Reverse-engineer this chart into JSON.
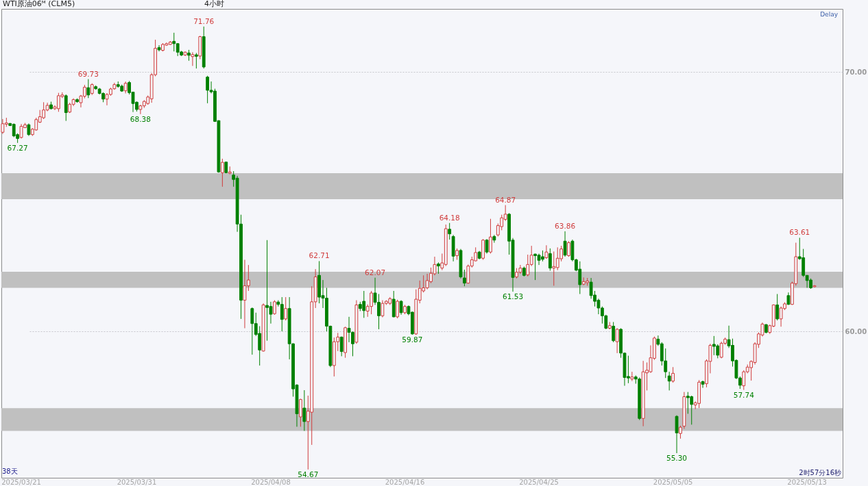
{
  "chart_data": {
    "type": "candlestick",
    "title": "WTI原油06ᴹ (CLM5)",
    "categories": [
      null,
      null,
      null,
      null,
      null,
      "2025/03/21",
      null,
      null,
      null,
      null,
      null,
      null,
      null,
      null,
      null,
      null,
      null,
      null,
      null,
      null,
      null,
      null,
      null,
      null,
      null,
      null,
      null,
      null,
      null,
      null,
      null,
      null,
      null,
      null,
      null,
      null,
      "2025/03/31",
      null,
      null,
      null,
      null,
      null,
      null,
      null,
      null,
      null,
      null,
      null,
      null,
      null,
      null,
      null,
      null,
      null,
      null,
      null,
      null,
      null,
      null,
      null,
      null,
      null,
      null,
      null,
      null,
      null,
      null,
      null,
      null,
      null,
      null,
      null,
      "2025/04/08",
      null,
      null,
      null,
      null,
      null,
      null,
      null,
      null,
      null,
      null,
      null,
      null,
      null,
      null,
      null,
      null,
      null,
      null,
      null,
      null,
      null,
      null,
      null,
      null,
      null,
      null,
      null,
      null,
      null,
      null,
      null,
      null,
      null,
      null,
      null,
      "2025/04/16",
      null,
      null,
      null,
      null,
      null,
      null,
      null,
      null,
      null,
      null,
      null,
      null,
      null,
      null,
      null,
      null,
      null,
      null,
      null,
      null,
      null,
      null,
      null,
      null,
      null,
      null,
      null,
      null,
      null,
      null,
      null,
      null,
      null,
      null,
      null,
      "2025/04/25",
      null,
      null,
      null,
      null,
      null,
      null,
      null,
      null,
      null,
      null,
      null,
      null,
      null,
      null,
      null,
      null,
      null,
      null,
      null,
      null,
      null,
      null,
      null,
      null,
      null,
      null,
      null,
      null,
      null,
      null,
      null,
      null,
      null,
      null,
      null,
      "2025/05/05",
      null,
      null,
      null,
      null,
      null,
      null,
      null,
      null,
      null,
      null,
      null,
      null,
      null,
      null,
      null,
      null,
      null,
      null,
      null,
      null,
      null,
      null,
      null,
      null,
      null,
      null,
      null,
      null,
      null,
      null,
      null,
      null,
      null,
      null,
      null,
      "2025/05/13",
      null,
      null
    ],
    "ohlc": [
      [
        67.68,
        68.19,
        67.62,
        68.01
      ],
      [
        67.99,
        68.24,
        67.89,
        68.04
      ],
      [
        68.02,
        68.04,
        67.92,
        67.94
      ],
      [
        67.99,
        68.02,
        67.49,
        67.54
      ],
      [
        67.59,
        67.64,
        67.27,
        67.44
      ],
      [
        67.48,
        68.0,
        67.44,
        67.91
      ],
      [
        67.86,
        68.04,
        67.84,
        67.97
      ],
      [
        67.97,
        68.02,
        67.54,
        67.59
      ],
      [
        67.59,
        67.84,
        67.54,
        67.8
      ],
      [
        67.77,
        68.24,
        67.74,
        68.17
      ],
      [
        68.07,
        68.54,
        68.04,
        68.28
      ],
      [
        68.24,
        68.84,
        68.19,
        68.54
      ],
      [
        68.54,
        68.82,
        68.49,
        68.72
      ],
      [
        68.74,
        68.86,
        68.56,
        68.59
      ],
      [
        68.59,
        68.72,
        68.54,
        68.66
      ],
      [
        68.59,
        69.2,
        68.47,
        69.09
      ],
      [
        69.06,
        69.22,
        69.0,
        69.12
      ],
      [
        69.09,
        69.14,
        68.12,
        68.44
      ],
      [
        68.46,
        68.82,
        68.42,
        68.76
      ],
      [
        68.76,
        68.99,
        68.69,
        68.94
      ],
      [
        68.94,
        68.99,
        68.82,
        68.86
      ],
      [
        68.82,
        69.12,
        68.64,
        69.08
      ],
      [
        69.07,
        69.51,
        68.99,
        69.42
      ],
      [
        69.4,
        69.73,
        69.0,
        69.12
      ],
      [
        69.18,
        69.57,
        69.12,
        69.52
      ],
      [
        69.44,
        69.49,
        69.32,
        69.36
      ],
      [
        69.35,
        69.39,
        69.14,
        69.18
      ],
      [
        69.18,
        69.22,
        68.84,
        68.96
      ],
      [
        68.96,
        69.19,
        68.72,
        69.14
      ],
      [
        69.14,
        69.4,
        69.09,
        69.35
      ],
      [
        69.36,
        69.59,
        69.32,
        69.52
      ],
      [
        69.52,
        69.64,
        69.4,
        69.45
      ],
      [
        69.46,
        69.52,
        69.24,
        69.27
      ],
      [
        69.28,
        69.64,
        69.18,
        69.57
      ],
      [
        69.6,
        69.66,
        69.14,
        69.21
      ],
      [
        69.23,
        69.24,
        68.46,
        68.79
      ],
      [
        68.84,
        68.87,
        68.48,
        68.56
      ],
      [
        68.56,
        68.74,
        68.38,
        68.7
      ],
      [
        68.7,
        68.92,
        68.62,
        68.87
      ],
      [
        68.79,
        69.1,
        68.74,
        69.04
      ],
      [
        68.97,
        69.96,
        68.82,
        69.9
      ],
      [
        69.9,
        71.25,
        69.84,
        70.92
      ],
      [
        70.95,
        71.04,
        70.8,
        70.86
      ],
      [
        70.84,
        71.12,
        70.8,
        71.07
      ],
      [
        71.04,
        71.14,
        71.02,
        71.1
      ],
      [
        71.07,
        71.2,
        71.05,
        71.16
      ],
      [
        71.19,
        71.52,
        70.8,
        71.1
      ],
      [
        71.1,
        71.12,
        70.62,
        70.77
      ],
      [
        70.78,
        70.82,
        70.62,
        70.66
      ],
      [
        70.66,
        70.8,
        70.62,
        70.77
      ],
      [
        70.74,
        70.86,
        70.44,
        70.65
      ],
      [
        70.6,
        70.77,
        70.24,
        70.68
      ],
      [
        70.67,
        70.74,
        70.14,
        70.61
      ],
      [
        70.62,
        71.4,
        70.5,
        71.37
      ],
      [
        71.37,
        71.76,
        70.14,
        70.2
      ],
      [
        69.81,
        69.86,
        68.8,
        69.3
      ],
      [
        69.3,
        69.64,
        69.18,
        69.24
      ],
      [
        69.27,
        69.36,
        68.08,
        68.1
      ],
      [
        68.13,
        68.14,
        66.12,
        66.15
      ],
      [
        66.12,
        66.66,
        65.58,
        66.52
      ],
      [
        66.53,
        66.55,
        66.1,
        66.12
      ],
      [
        66.1,
        66.36,
        66.06,
        66.15
      ],
      [
        66.03,
        66.18,
        65.58,
        65.86
      ],
      [
        65.91,
        66.0,
        63.84,
        64.14
      ],
      [
        64.14,
        64.5,
        60.48,
        61.2
      ],
      [
        61.2,
        62.76,
        60.12,
        61.76
      ],
      [
        61.76,
        62.56,
        61.56,
        61.98
      ],
      [
        60.88,
        60.92,
        59.1,
        60.3
      ],
      [
        60.3,
        60.72,
        59.82,
        59.88
      ],
      [
        59.92,
        60.2,
        58.68,
        59.28
      ],
      [
        59.24,
        61.08,
        59.22,
        61.02
      ],
      [
        61.0,
        63.52,
        59.64,
        60.92
      ],
      [
        60.96,
        61.14,
        60.3,
        60.66
      ],
      [
        60.68,
        61.2,
        60.64,
        61.14
      ],
      [
        61.13,
        61.2,
        60.96,
        61.04
      ],
      [
        61.04,
        61.32,
        60.0,
        60.46
      ],
      [
        60.48,
        61.32,
        60.42,
        60.88
      ],
      [
        60.88,
        61.32,
        58.92,
        59.52
      ],
      [
        59.52,
        59.54,
        57.48,
        57.78
      ],
      [
        57.93,
        57.96,
        56.32,
        56.82
      ],
      [
        56.7,
        57.4,
        56.32,
        57.37
      ],
      [
        57.04,
        57.73,
        56.16,
        56.52
      ],
      [
        56.52,
        57.52,
        54.67,
        56.92
      ],
      [
        56.88,
        61.74,
        55.62,
        61.14
      ],
      [
        61.14,
        62.4,
        60.9,
        62.1
      ],
      [
        62.16,
        62.71,
        61.08,
        61.32
      ],
      [
        61.38,
        61.98,
        60.9,
        61.28
      ],
      [
        61.28,
        61.68,
        60.0,
        60.2
      ],
      [
        60.2,
        60.22,
        58.62,
        58.68
      ],
      [
        58.68,
        59.76,
        58.26,
        59.6
      ],
      [
        59.6,
        59.94,
        59.24,
        59.78
      ],
      [
        59.78,
        59.8,
        59.04,
        59.22
      ],
      [
        59.18,
        60.18,
        58.98,
        60.14
      ],
      [
        60.12,
        60.56,
        59.58,
        59.96
      ],
      [
        59.96,
        60.0,
        59.04,
        59.52
      ],
      [
        59.58,
        61.2,
        59.52,
        61.02
      ],
      [
        61.04,
        61.14,
        60.78,
        60.88
      ],
      [
        61.16,
        61.56,
        60.52,
        60.8
      ],
      [
        60.78,
        61.04,
        60.56,
        60.96
      ],
      [
        60.96,
        61.56,
        60.66,
        61.48
      ],
      [
        61.48,
        62.07,
        61.02,
        61.12
      ],
      [
        61.12,
        61.44,
        60.08,
        60.6
      ],
      [
        60.6,
        61.2,
        60.54,
        61.08
      ],
      [
        61.08,
        61.2,
        61.02,
        61.16
      ],
      [
        61.08,
        61.32,
        61.02,
        61.26
      ],
      [
        61.24,
        61.56,
        60.54,
        60.56
      ],
      [
        60.56,
        61.22,
        60.5,
        61.16
      ],
      [
        61.16,
        61.2,
        60.64,
        60.72
      ],
      [
        60.72,
        61.02,
        60.66,
        60.96
      ],
      [
        60.96,
        61.0,
        60.62,
        60.68
      ],
      [
        60.74,
        60.76,
        59.87,
        59.9
      ],
      [
        59.9,
        61.62,
        59.86,
        61.24
      ],
      [
        61.2,
        61.96,
        61.08,
        61.66
      ],
      [
        61.56,
        62.16,
        61.5,
        61.68
      ],
      [
        61.68,
        62.22,
        61.62,
        61.96
      ],
      [
        61.92,
        62.46,
        61.86,
        62.24
      ],
      [
        62.22,
        62.88,
        62.16,
        62.58
      ],
      [
        62.6,
        62.66,
        62.22,
        62.52
      ],
      [
        62.44,
        63.0,
        62.36,
        62.64
      ],
      [
        62.58,
        64.12,
        62.52,
        63.96
      ],
      [
        63.94,
        64.18,
        63.54,
        63.76
      ],
      [
        63.66,
        63.72,
        62.7,
        62.9
      ],
      [
        62.92,
        63.2,
        62.76,
        63.12
      ],
      [
        63.12,
        63.18,
        62.04,
        62.1
      ],
      [
        62.06,
        62.38,
        61.74,
        61.86
      ],
      [
        61.86,
        62.58,
        61.84,
        62.52
      ],
      [
        62.52,
        62.88,
        62.46,
        62.76
      ],
      [
        62.72,
        63.24,
        62.7,
        63.04
      ],
      [
        63.06,
        63.1,
        62.78,
        62.82
      ],
      [
        62.82,
        63.56,
        62.76,
        63.52
      ],
      [
        63.52,
        63.56,
        63.0,
        63.06
      ],
      [
        63.06,
        64.34,
        63.0,
        63.64
      ],
      [
        63.66,
        63.72,
        63.42,
        63.52
      ],
      [
        63.72,
        64.16,
        63.66,
        64.08
      ],
      [
        64.04,
        64.5,
        63.9,
        64.38
      ],
      [
        64.32,
        64.87,
        64.26,
        64.52
      ],
      [
        64.52,
        64.56,
        62.96,
        63.48
      ],
      [
        63.52,
        63.6,
        61.53,
        62.08
      ],
      [
        62.1,
        62.44,
        62.04,
        62.28
      ],
      [
        62.28,
        62.56,
        62.22,
        62.44
      ],
      [
        62.44,
        62.5,
        62.12,
        62.16
      ],
      [
        62.18,
        62.96,
        62.12,
        62.58
      ],
      [
        62.58,
        63.3,
        62.52,
        62.94
      ],
      [
        62.98,
        63.0,
        61.98,
        62.92
      ],
      [
        62.94,
        63.0,
        62.56,
        62.74
      ],
      [
        62.88,
        63.12,
        62.7,
        62.78
      ],
      [
        62.84,
        63.32,
        62.8,
        63.06
      ],
      [
        63.0,
        63.2,
        62.34,
        62.44
      ],
      [
        62.44,
        63.08,
        61.76,
        62.5
      ],
      [
        62.46,
        63.24,
        62.36,
        62.82
      ],
      [
        62.8,
        63.3,
        62.7,
        63.18
      ],
      [
        63.48,
        63.86,
        62.88,
        62.94
      ],
      [
        62.92,
        63.48,
        62.88,
        63.42
      ],
      [
        63.48,
        63.54,
        62.7,
        62.76
      ],
      [
        62.76,
        62.8,
        62.32,
        62.36
      ],
      [
        62.4,
        62.7,
        61.44,
        61.8
      ],
      [
        61.82,
        62.08,
        61.78,
        61.92
      ],
      [
        61.88,
        62.06,
        61.76,
        61.94
      ],
      [
        61.9,
        62.06,
        61.26,
        61.38
      ],
      [
        61.4,
        61.56,
        60.96,
        61.16
      ],
      [
        61.2,
        61.26,
        60.66,
        60.9
      ],
      [
        60.9,
        60.96,
        60.3,
        60.6
      ],
      [
        60.6,
        60.64,
        60.08,
        60.12
      ],
      [
        60.12,
        60.36,
        60.08,
        60.22
      ],
      [
        60.2,
        60.36,
        59.58,
        59.64
      ],
      [
        59.6,
        60.12,
        59.16,
        60.08
      ],
      [
        60.08,
        60.12,
        58.98,
        59.16
      ],
      [
        59.16,
        59.18,
        57.9,
        58.22
      ],
      [
        58.26,
        59.06,
        58.0,
        58.2
      ],
      [
        58.16,
        58.44,
        58.08,
        58.24
      ],
      [
        58.24,
        58.3,
        57.98,
        58.16
      ],
      [
        58.16,
        58.22,
        56.58,
        56.64
      ],
      [
        56.64,
        58.86,
        56.34,
        58.44
      ],
      [
        58.4,
        58.8,
        57.72,
        58.5
      ],
      [
        58.44,
        59.46,
        58.4,
        58.98
      ],
      [
        58.96,
        59.8,
        58.9,
        59.74
      ],
      [
        59.7,
        59.84,
        59.44,
        59.5
      ],
      [
        59.52,
        59.58,
        58.68,
        58.86
      ],
      [
        58.86,
        59.34,
        58.2,
        58.44
      ],
      [
        58.28,
        58.44,
        57.72,
        58.08
      ],
      [
        58.08,
        58.62,
        58.02,
        58.38
      ],
      [
        56.72,
        56.76,
        55.3,
        56.08
      ],
      [
        56.06,
        56.36,
        55.86,
        56.3
      ],
      [
        56.34,
        57.66,
        56.24,
        57.48
      ],
      [
        57.5,
        57.66,
        56.82,
        57.44
      ],
      [
        57.48,
        57.52,
        56.4,
        57.18
      ],
      [
        57.16,
        57.3,
        57.0,
        57.24
      ],
      [
        57.22,
        58.12,
        57.04,
        58.04
      ],
      [
        58.06,
        58.1,
        57.82,
        57.96
      ],
      [
        57.98,
        58.92,
        57.84,
        58.86
      ],
      [
        58.84,
        59.52,
        58.38,
        59.46
      ],
      [
        59.5,
        59.82,
        59.08,
        59.42
      ],
      [
        59.44,
        59.5,
        58.96,
        59.08
      ],
      [
        59.0,
        59.6,
        58.96,
        59.54
      ],
      [
        59.54,
        59.76,
        59.48,
        59.7
      ],
      [
        59.68,
        60.22,
        59.36,
        59.44
      ],
      [
        59.46,
        59.72,
        58.64,
        58.86
      ],
      [
        58.88,
        58.92,
        58.16,
        58.2
      ],
      [
        58.2,
        58.26,
        57.78,
        57.92
      ],
      [
        57.9,
        58.5,
        57.74,
        58.44
      ],
      [
        58.44,
        58.72,
        58.38,
        58.62
      ],
      [
        58.6,
        58.88,
        58.1,
        58.84
      ],
      [
        58.8,
        59.58,
        58.72,
        59.52
      ],
      [
        59.5,
        59.96,
        59.36,
        59.9
      ],
      [
        59.86,
        60.34,
        59.8,
        60.28
      ],
      [
        60.26,
        60.28,
        59.92,
        59.96
      ],
      [
        59.96,
        60.26,
        59.9,
        60.22
      ],
      [
        60.2,
        61.04,
        60.16,
        61.02
      ],
      [
        61.02,
        61.44,
        60.42,
        60.48
      ],
      [
        60.48,
        60.96,
        60.18,
        60.9
      ],
      [
        60.88,
        61.12,
        60.82,
        61.06
      ],
      [
        61.38,
        61.5,
        61.02,
        61.04
      ],
      [
        61.04,
        61.92,
        61.02,
        61.86
      ],
      [
        61.84,
        63.42,
        61.76,
        62.88
      ],
      [
        62.88,
        63.61,
        62.76,
        62.8
      ],
      [
        62.84,
        63.18,
        62.1,
        62.16
      ],
      [
        62.16,
        62.16,
        61.68,
        61.96
      ],
      [
        61.98,
        62.04,
        61.64,
        61.68
      ],
      [
        61.72,
        61.78,
        61.7,
        61.76
      ]
    ],
    "colors": [
      "#d03c3c",
      "#d03c3c",
      "#008000",
      "#008000",
      "#008000",
      "#d03c3c",
      "#d03c3c",
      "#008000",
      "#d03c3c",
      "#d03c3c",
      "#d03c3c",
      "#d03c3c",
      "#d03c3c",
      "#008000",
      "#d03c3c",
      "#d03c3c",
      "#d03c3c",
      "#008000",
      "#d03c3c",
      "#d03c3c",
      "#008000",
      "#d03c3c",
      "#d03c3c",
      "#008000",
      "#d03c3c",
      "#008000",
      "#008000",
      "#008000",
      "#d03c3c",
      "#d03c3c",
      "#d03c3c",
      "#008000",
      "#008000",
      "#d03c3c",
      "#008000",
      "#008000",
      "#008000",
      "#d03c3c",
      "#d03c3c",
      "#d03c3c",
      "#d03c3c",
      "#d03c3c",
      "#008000",
      "#d03c3c",
      "#d03c3c",
      "#d03c3c",
      "#008000",
      "#008000",
      "#008000",
      "#d03c3c",
      "#008000",
      "#d03c3c",
      "#008000",
      "#d03c3c",
      "#008000",
      "#008000",
      "#008000",
      "#008000",
      "#008000",
      "#d03c3c",
      "#008000",
      "#d03c3c",
      "#008000",
      "#008000",
      "#008000",
      "#d03c3c",
      "#d03c3c",
      "#008000",
      "#008000",
      "#008000",
      "#d03c3c",
      "#008000",
      "#008000",
      "#d03c3c",
      "#008000",
      "#008000",
      "#d03c3c",
      "#008000",
      "#008000",
      "#008000",
      "#d03c3c",
      "#008000",
      "#d03c3c",
      "#d03c3c",
      "#d03c3c",
      "#008000",
      "#008000",
      "#008000",
      "#008000",
      "#d03c3c",
      "#d03c3c",
      "#008000",
      "#d03c3c",
      "#008000",
      "#008000",
      "#d03c3c",
      "#008000",
      "#008000",
      "#d03c3c",
      "#d03c3c",
      "#008000",
      "#008000",
      "#d03c3c",
      "#d03c3c",
      "#d03c3c",
      "#008000",
      "#d03c3c",
      "#008000",
      "#d03c3c",
      "#008000",
      "#008000",
      "#d03c3c",
      "#d03c3c",
      "#d03c3c",
      "#d03c3c",
      "#d03c3c",
      "#d03c3c",
      "#008000",
      "#d03c3c",
      "#d03c3c",
      "#008000",
      "#008000",
      "#d03c3c",
      "#008000",
      "#008000",
      "#d03c3c",
      "#d03c3c",
      "#d03c3c",
      "#008000",
      "#d03c3c",
      "#008000",
      "#d03c3c",
      "#008000",
      "#d03c3c",
      "#d03c3c",
      "#d03c3c",
      "#008000",
      "#008000",
      "#d03c3c",
      "#d03c3c",
      "#008000",
      "#d03c3c",
      "#d03c3c",
      "#008000",
      "#008000",
      "#008000",
      "#d03c3c",
      "#008000",
      "#d03c3c",
      "#d03c3c",
      "#d03c3c",
      "#008000",
      "#d03c3c",
      "#008000",
      "#008000",
      "#008000",
      "#d03c3c",
      "#d03c3c",
      "#008000",
      "#008000",
      "#008000",
      "#008000",
      "#008000",
      "#d03c3c",
      "#008000",
      "#d03c3c",
      "#008000",
      "#008000",
      "#008000",
      "#d03c3c",
      "#008000",
      "#008000",
      "#d03c3c",
      "#d03c3c",
      "#d03c3c",
      "#d03c3c",
      "#008000",
      "#008000",
      "#008000",
      "#008000",
      "#d03c3c",
      "#008000",
      "#d03c3c",
      "#d03c3c",
      "#008000",
      "#008000",
      "#d03c3c",
      "#d03c3c",
      "#008000",
      "#d03c3c",
      "#d03c3c",
      "#008000",
      "#008000",
      "#d03c3c",
      "#d03c3c",
      "#008000",
      "#008000",
      "#008000",
      "#008000",
      "#d03c3c",
      "#d03c3c",
      "#d03c3c",
      "#d03c3c",
      "#d03c3c",
      "#d03c3c",
      "#008000",
      "#d03c3c",
      "#d03c3c",
      "#008000",
      "#d03c3c",
      "#d03c3c",
      "#008000",
      "#d03c3c",
      "#d03c3c",
      "#008000",
      "#008000",
      "#008000",
      "#008000",
      "#d03c3c"
    ],
    "ylim": [
      54.35,
      72.44
    ],
    "yticks": [
      {
        "value": 60,
        "label": "60.00"
      },
      {
        "value": 70,
        "label": "70.00"
      }
    ],
    "grid": "y",
    "bands": [
      {
        "axis": "y",
        "from": 65.1,
        "to": 66.1,
        "color": "#c0c0c0"
      },
      {
        "axis": "y",
        "from": 61.68,
        "to": 62.3,
        "color": "#c0c0c0"
      },
      {
        "axis": "y",
        "from": 56.16,
        "to": 57.04,
        "color": "#c0c0c0"
      }
    ],
    "annotations": [
      "4小时",
      "Delay",
      "38天",
      "2时57分16秒",
      {
        "text": "71.76",
        "y": 71.76
      },
      {
        "text": "69.73",
        "y": 69.73
      },
      {
        "text": "67.27",
        "y": 67.27
      },
      {
        "text": "68.38",
        "y": 68.38
      },
      {
        "text": "62.71",
        "y": 62.71
      },
      {
        "text": "54.67",
        "y": 54.67
      },
      {
        "text": "62.07",
        "y": 62.07
      },
      {
        "text": "59.87",
        "y": 59.87
      },
      {
        "text": "64.18",
        "y": 64.18
      },
      {
        "text": "64.87",
        "y": 64.87
      },
      {
        "text": "61.53",
        "y": 61.53
      },
      {
        "text": "63.86",
        "y": 63.86
      },
      {
        "text": "55.30",
        "y": 55.3
      },
      {
        "text": "57.74",
        "y": 57.74
      },
      {
        "text": "63.61",
        "y": 63.61
      }
    ]
  }
}
